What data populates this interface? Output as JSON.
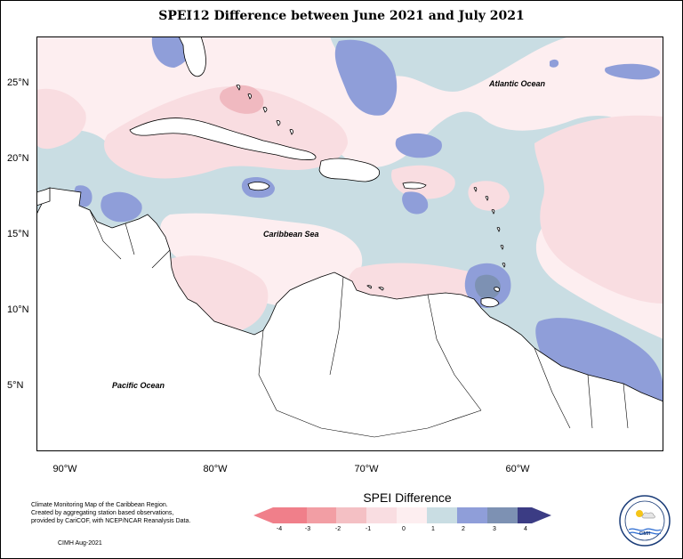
{
  "title": "SPEI12 Difference between June 2021 and July 2021",
  "lat_labels": [
    "25°N",
    "20°N",
    "15°N",
    "10°N",
    "5°N"
  ],
  "lon_labels": [
    "90°W",
    "80°W",
    "70°W",
    "60°W"
  ],
  "ocean_labels": {
    "atlantic": "Atlantic Ocean",
    "caribbean": "Caribbean Sea",
    "pacific": "Pacific Ocean"
  },
  "caption": {
    "line1": "Climate Monitoring Map of the Caribbean Region.",
    "line2": "Created by aggregating station based observations,",
    "line3": "provided by CariCOF, with NCEP/NCAR Reanalysis Data."
  },
  "credit": "CIMH Aug-2021",
  "legend": {
    "title": "SPEI Difference",
    "ticks": [
      "-4",
      "-3",
      "-2",
      "-1",
      "0",
      "1",
      "2",
      "3",
      "4"
    ],
    "colors": [
      "#f07f8a",
      "#f29ea4",
      "#f4c0c4",
      "#f9dde1",
      "#fdeef0",
      "#c9dde3",
      "#8f9ed9",
      "#7d91b3",
      "#5f6b98",
      "#3b3c84"
    ]
  },
  "colors": {
    "ocean_base": "#c9dde3",
    "pink": "#f9dde1",
    "light_pink": "#fdeef0",
    "rose": "#f0b9c0",
    "blue": "#8f9ed9",
    "slate": "#7d91b3",
    "land": "#ffffff"
  },
  "logo": {
    "text": "CIMH"
  }
}
